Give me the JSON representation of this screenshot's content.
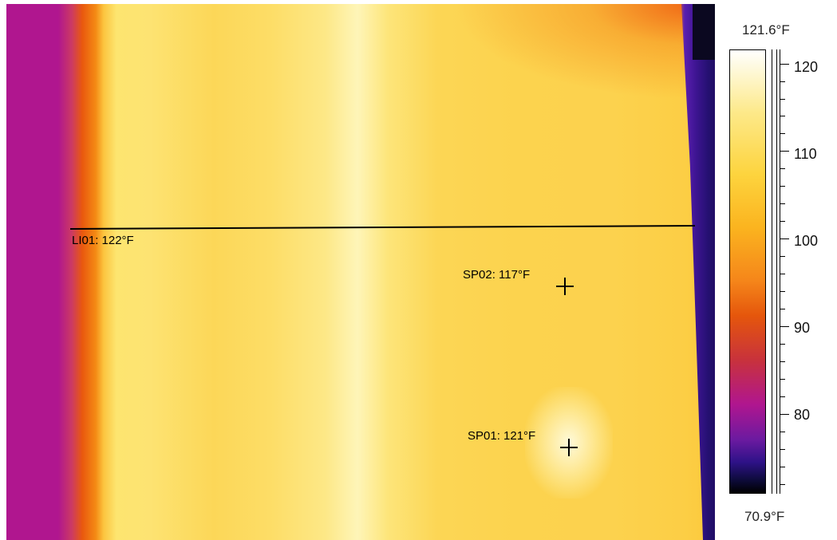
{
  "image": {
    "description_icon": "thermal-image",
    "palette": "ironbow"
  },
  "measurements": {
    "line": {
      "label": "LI01: 122°F"
    },
    "spot2": {
      "label": "SP02: 117°F"
    },
    "spot1": {
      "label": "SP01: 121°F"
    }
  },
  "scale": {
    "max_label": "121.6°F",
    "min_label": "70.9°F",
    "ticks": [
      "120",
      "110",
      "100",
      "90",
      "80"
    ],
    "colors": {
      "hot": "#ffffff",
      "warm": "#fdd43e",
      "mid": "#e5560c",
      "cool": "#b0168f",
      "cold": "#000000"
    }
  }
}
